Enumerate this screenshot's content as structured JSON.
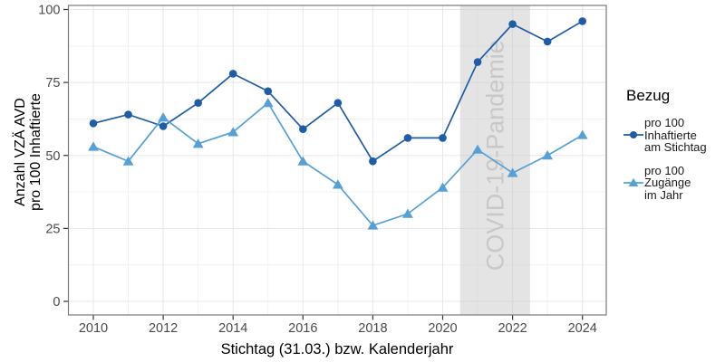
{
  "chart_data": {
    "type": "line",
    "x_label": "Stichtag (31.03.) bzw. Kalenderjahr",
    "y_label": "Anzahl VZÄ AVD\npro 100 Inhaftierte",
    "x": [
      2010,
      2011,
      2012,
      2013,
      2014,
      2015,
      2016,
      2017,
      2018,
      2019,
      2020,
      2021,
      2022,
      2023,
      2024
    ],
    "series": [
      {
        "name": "pro 100\nInhaftierte\nam Stichtag",
        "key": "pro-100-inhaftierte-am-stichtag",
        "marker": "circle",
        "color": "#1e5ca8",
        "values": [
          61,
          64,
          60,
          68,
          78,
          72,
          59,
          68,
          48,
          56,
          56,
          82,
          95,
          89,
          96
        ]
      },
      {
        "name": "pro 100\nZugänge\nim Jahr",
        "key": "pro-100-zugaenge-im-jahr",
        "marker": "triangle",
        "color": "#56a0d6",
        "values": [
          53,
          48,
          63,
          54,
          58,
          68,
          48,
          40,
          26,
          30,
          39,
          52,
          44,
          50,
          57
        ]
      }
    ],
    "x_ticks": [
      2010,
      2012,
      2014,
      2016,
      2018,
      2020,
      2022,
      2024
    ],
    "y_ticks": [
      0,
      25,
      50,
      75,
      100
    ],
    "ylim": [
      0,
      100
    ],
    "grid": "major+minor",
    "legend": {
      "title": "Bezug",
      "position": "right"
    },
    "annotation": {
      "label": "COVID-19-Pandemie",
      "x_start": 2020.5,
      "x_end": 2022.5,
      "band_color": "#c9c9c9",
      "band_opacity": 0.5,
      "text_color": "#c8c8c8"
    },
    "colors": {
      "grid_major": "#e7e7e7",
      "grid_minor": "#f2f2f2",
      "panel_border": "#7a7a7a",
      "tick_mark": "#333333",
      "tick_text": "#4a4a4a",
      "axis_title": "#000000"
    }
  }
}
